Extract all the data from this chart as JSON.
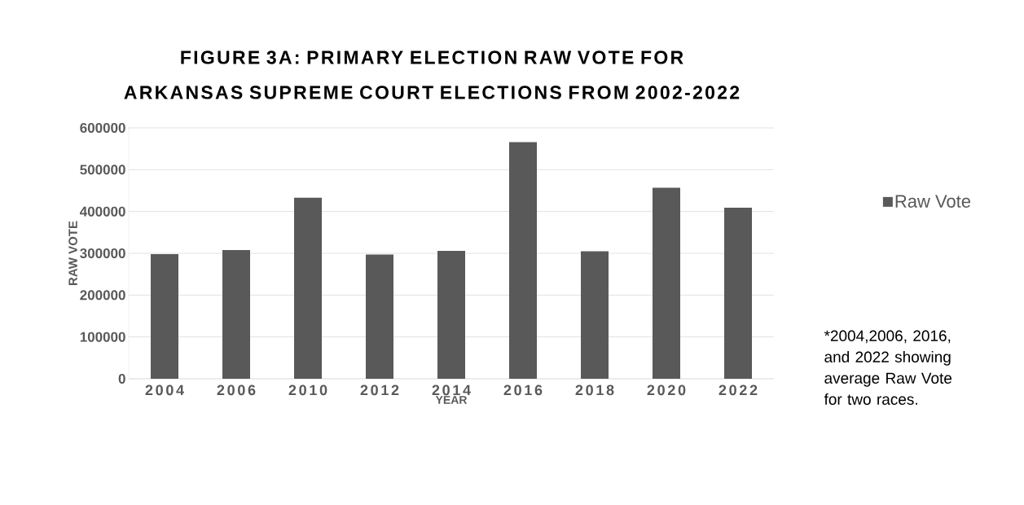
{
  "chart_data": {
    "type": "bar",
    "title": "FIGURE 3A: PRIMARY ELECTION RAW VOTE FOR ARKANSAS SUPREME COURT ELECTIONS FROM 2002-2022",
    "xlabel": "YEAR",
    "ylabel": "RAW VOTE",
    "categories": [
      "2004",
      "2006",
      "2010",
      "2012",
      "2014",
      "2016",
      "2018",
      "2020",
      "2022"
    ],
    "series": [
      {
        "name": "Raw Vote",
        "color": "#595959",
        "values": [
          298000,
          308000,
          433000,
          297000,
          306000,
          566000,
          305000,
          457000,
          409000
        ]
      }
    ],
    "ylim": [
      0,
      600000
    ],
    "yticks": [
      0,
      100000,
      200000,
      300000,
      400000,
      500000,
      600000
    ],
    "grid": "y",
    "legend": "right",
    "annotations": [
      "*2004,2006, 2016, and 2022  showing average Raw Vote for two races."
    ]
  }
}
